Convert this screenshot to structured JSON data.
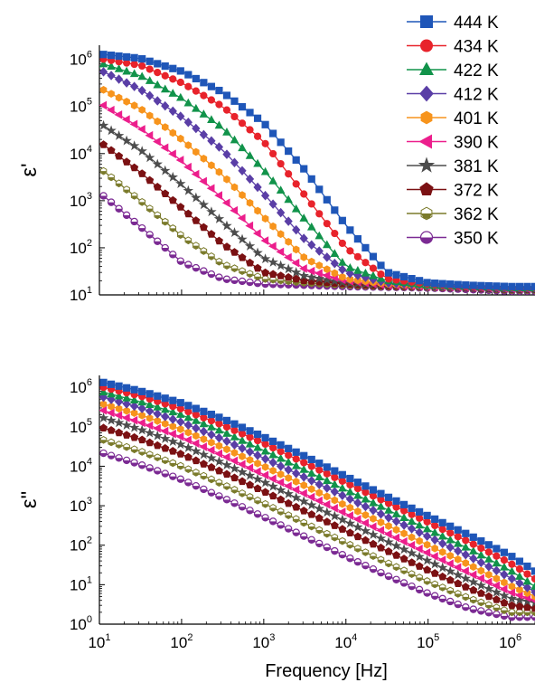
{
  "chart_data": [
    {
      "type": "line",
      "ylabel": "ε'",
      "yscale": "log",
      "xscale": "log",
      "xlim": [
        10,
        2000000
      ],
      "ylim": [
        10,
        2000000
      ],
      "yticks": [
        10,
        100,
        1000,
        10000,
        100000,
        1000000
      ],
      "ytick_labels": [
        {
          "base": "10",
          "exp": "1"
        },
        {
          "base": "10",
          "exp": "2"
        },
        {
          "base": "10",
          "exp": "3"
        },
        {
          "base": "10",
          "exp": "4"
        },
        {
          "base": "10",
          "exp": "5"
        },
        {
          "base": "10",
          "exp": "6"
        }
      ],
      "x": [
        10,
        31.6,
        100,
        316,
        1000,
        3162,
        10000,
        31623,
        100000,
        316228,
        1000000,
        2000000
      ],
      "series": [
        {
          "name": "444 K",
          "values": [
            1300000,
            1050000,
            560000,
            200000,
            45000,
            4500,
            300,
            30,
            18,
            16,
            15,
            15
          ]
        },
        {
          "name": "434 K",
          "values": [
            1050000,
            750000,
            320000,
            100000,
            18000,
            1300,
            100,
            22,
            17,
            15,
            14.5,
            14.5
          ]
        },
        {
          "name": "422 K",
          "values": [
            850000,
            450000,
            150000,
            35000,
            4500,
            400,
            40,
            20,
            16,
            15,
            14,
            14
          ]
        },
        {
          "name": "412 K",
          "values": [
            600000,
            230000,
            60000,
            12000,
            1400,
            150,
            30,
            18,
            16,
            15,
            14,
            14
          ]
        },
        {
          "name": "401 K",
          "values": [
            250000,
            90000,
            20000,
            3500,
            450,
            60,
            22,
            17,
            15.5,
            15,
            14,
            14
          ]
        },
        {
          "name": "390 K",
          "values": [
            120000,
            35000,
            7000,
            1100,
            150,
            35,
            20,
            16,
            15,
            14.5,
            13.5,
            13.5
          ]
        },
        {
          "name": "381 K",
          "values": [
            45000,
            12000,
            2200,
            350,
            60,
            25,
            18,
            16,
            15,
            14,
            13,
            13
          ]
        },
        {
          "name": "372 K",
          "values": [
            18000,
            4000,
            700,
            120,
            30,
            20,
            17,
            15.5,
            15,
            14,
            13,
            13
          ]
        },
        {
          "name": "362 K",
          "values": [
            5000,
            1000,
            180,
            45,
            22,
            18,
            16,
            15,
            14.5,
            14,
            12.5,
            12.5
          ]
        },
        {
          "name": "350 K",
          "values": [
            1500,
            280,
            50,
            22,
            17,
            16,
            15,
            14.5,
            14,
            13,
            12,
            12
          ]
        }
      ]
    },
    {
      "type": "line",
      "ylabel": "ε\"",
      "xlabel": "Frequency  [Hz]",
      "yscale": "log",
      "xscale": "log",
      "xlim": [
        10,
        2000000
      ],
      "ylim": [
        1,
        2000000
      ],
      "yticks": [
        1,
        10,
        100,
        1000,
        10000,
        100000,
        1000000
      ],
      "ytick_labels": [
        {
          "base": "10",
          "exp": "0"
        },
        {
          "base": "10",
          "exp": "1"
        },
        {
          "base": "10",
          "exp": "2"
        },
        {
          "base": "10",
          "exp": "3"
        },
        {
          "base": "10",
          "exp": "4"
        },
        {
          "base": "10",
          "exp": "5"
        },
        {
          "base": "10",
          "exp": "6"
        }
      ],
      "xticks": [
        10,
        100,
        1000,
        10000,
        100000,
        1000000
      ],
      "xtick_labels": [
        {
          "base": "10",
          "exp": "1"
        },
        {
          "base": "10",
          "exp": "2"
        },
        {
          "base": "10",
          "exp": "3"
        },
        {
          "base": "10",
          "exp": "4"
        },
        {
          "base": "10",
          "exp": "5"
        },
        {
          "base": "10",
          "exp": "6"
        }
      ],
      "x": [
        10,
        31.6,
        100,
        316,
        1000,
        3162,
        10000,
        31623,
        100000,
        316228,
        1000000,
        2000000
      ],
      "series": [
        {
          "name": "444 K",
          "values": [
            1400000,
            800000,
            400000,
            160000,
            55000,
            18000,
            5500,
            1700,
            550,
            180,
            55,
            22
          ]
        },
        {
          "name": "434 K",
          "values": [
            1050000,
            600000,
            280000,
            110000,
            38000,
            12000,
            3800,
            1200,
            380,
            120,
            35,
            14
          ]
        },
        {
          "name": "422 K",
          "values": [
            800000,
            430000,
            200000,
            75000,
            25000,
            8000,
            2500,
            800,
            250,
            80,
            23,
            9
          ]
        },
        {
          "name": "412 K",
          "values": [
            600000,
            300000,
            130000,
            48000,
            16000,
            5200,
            1650,
            520,
            165,
            52,
            15,
            6.5
          ]
        },
        {
          "name": "401 K",
          "values": [
            400000,
            200000,
            85000,
            30000,
            10000,
            3200,
            1000,
            320,
            100,
            32,
            9.5,
            5
          ]
        },
        {
          "name": "390 K",
          "values": [
            280000,
            130000,
            55000,
            19000,
            6200,
            2000,
            630,
            200,
            63,
            20,
            6.5,
            4
          ]
        },
        {
          "name": "381 K",
          "values": [
            180000,
            85000,
            35000,
            12000,
            4000,
            1250,
            400,
            125,
            40,
            13,
            4.5,
            3.5
          ]
        },
        {
          "name": "372 K",
          "values": [
            100000,
            48000,
            20000,
            7000,
            2300,
            720,
            230,
            72,
            23,
            8,
            3,
            2.5
          ]
        },
        {
          "name": "362 K",
          "values": [
            50000,
            24000,
            10000,
            3500,
            1150,
            360,
            115,
            36,
            12,
            4.5,
            2,
            2
          ]
        },
        {
          "name": "350 K",
          "values": [
            23000,
            11000,
            4600,
            1600,
            520,
            165,
            52,
            17,
            6,
            2.5,
            1.5,
            1.5
          ]
        }
      ]
    }
  ],
  "legend": {
    "placement": "top-right",
    "entries": [
      {
        "label": "444 K",
        "color": "#1f56b8",
        "marker": "square"
      },
      {
        "label": "434 K",
        "color": "#e8232b",
        "marker": "circle"
      },
      {
        "label": "422 K",
        "color": "#11934a",
        "marker": "triangle-up"
      },
      {
        "label": "412 K",
        "color": "#5a3ea6",
        "marker": "diamond"
      },
      {
        "label": "401 K",
        "color": "#f7941d",
        "marker": "hexagon"
      },
      {
        "label": "390 K",
        "color": "#ec1e8c",
        "marker": "triangle-left"
      },
      {
        "label": "381 K",
        "color": "#4d4d4d",
        "marker": "star"
      },
      {
        "label": "372 K",
        "color": "#7b1113",
        "marker": "pentagon"
      },
      {
        "label": "362 K",
        "color": "#7a7a2a",
        "marker": "hexagon-half"
      },
      {
        "label": "350 K",
        "color": "#7b2a93",
        "marker": "circle-half"
      }
    ]
  }
}
